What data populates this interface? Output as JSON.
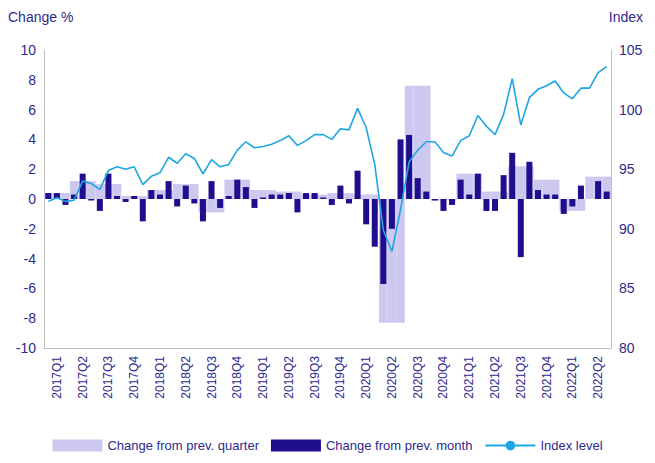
{
  "chart_data": {
    "type": "bar",
    "ylabel": "Change %",
    "y2label": "Index",
    "categories": [
      null,
      "2017Q1",
      null,
      null,
      "2017Q2",
      null,
      null,
      "2017Q3",
      null,
      null,
      "2017Q4",
      null,
      null,
      "2018Q1",
      null,
      null,
      "2018Q2",
      null,
      null,
      "2018Q3",
      null,
      null,
      "2018Q4",
      null,
      null,
      "2019Q1",
      null,
      null,
      "2019Q2",
      null,
      null,
      "2019Q3",
      null,
      null,
      "2019Q4",
      null,
      null,
      "2020Q1",
      null,
      null,
      "2020Q2",
      null,
      null,
      "2020Q3",
      null,
      null,
      "2020Q4",
      null,
      null,
      "2021Q1",
      null,
      null,
      "2021Q2",
      null,
      null,
      "2021Q3",
      null,
      null,
      "2021Q4",
      null,
      null,
      "2022Q1",
      null,
      null,
      "2022Q2",
      null
    ],
    "series": [
      {
        "name": "Change from prev. quarter",
        "type": "bar",
        "color": "#cdc8ef",
        "values": [
          0.4,
          0.4,
          0.4,
          1.2,
          1.2,
          1.2,
          1.0,
          1.0,
          1.0,
          0.2,
          0.2,
          0.2,
          0.6,
          0.6,
          0.6,
          1.0,
          1.0,
          1.0,
          -0.9,
          -0.9,
          -0.9,
          1.3,
          1.3,
          1.3,
          0.6,
          0.6,
          0.6,
          0.5,
          0.5,
          0.5,
          0.3,
          0.3,
          0.3,
          0.4,
          0.4,
          0.4,
          0.3,
          0.3,
          0.3,
          -8.3,
          -8.3,
          -8.3,
          7.6,
          7.6,
          7.6,
          -0.1,
          -0.1,
          -0.1,
          1.7,
          1.7,
          1.7,
          0.5,
          0.5,
          0.5,
          2.2,
          2.2,
          2.2,
          1.3,
          1.3,
          1.3,
          -0.8,
          -0.8,
          -0.8,
          1.5,
          1.5,
          1.5
        ]
      },
      {
        "name": "Change from prev. month",
        "type": "bar",
        "color": "#1f0f8f",
        "values": [
          0.4,
          0.4,
          -0.4,
          0.3,
          1.7,
          -0.1,
          -0.8,
          1.7,
          0.2,
          -0.2,
          0.2,
          -1.5,
          0.6,
          0.3,
          1.2,
          -0.5,
          0.9,
          -0.3,
          -1.5,
          1.2,
          -0.6,
          0.2,
          1.3,
          0.8,
          -0.6,
          0.1,
          0.3,
          0.3,
          0.4,
          -0.9,
          0.4,
          0.4,
          0.1,
          -0.4,
          0.9,
          -0.3,
          1.9,
          -1.7,
          -3.2,
          -5.7,
          -2.0,
          4.0,
          4.3,
          1.4,
          0.5,
          -0.1,
          -0.8,
          -0.4,
          1.3,
          0.3,
          1.7,
          -0.8,
          -0.8,
          1.6,
          3.1,
          -3.9,
          2.5,
          0.6,
          0.3,
          0.3,
          -1.0,
          -0.5,
          0.9,
          0.0,
          1.2,
          0.5
        ]
      },
      {
        "name": "Index level",
        "type": "line",
        "axis": "y2",
        "color": "#1ea6e0",
        "values": [
          92.3,
          92.6,
          92.3,
          92.4,
          94.0,
          93.8,
          93.3,
          94.9,
          95.2,
          95.0,
          95.2,
          93.7,
          94.4,
          94.7,
          96.0,
          95.5,
          96.3,
          95.9,
          94.6,
          95.8,
          95.2,
          95.4,
          96.6,
          97.3,
          96.8,
          96.9,
          97.1,
          97.4,
          97.8,
          97.0,
          97.4,
          97.9,
          97.9,
          97.5,
          98.4,
          98.3,
          100.1,
          98.5,
          95.4,
          89.9,
          88.1,
          91.6,
          95.6,
          96.6,
          97.3,
          97.3,
          96.4,
          96.1,
          97.4,
          97.8,
          99.5,
          98.6,
          97.9,
          99.6,
          102.6,
          98.7,
          101.0,
          101.7,
          102.0,
          102.4,
          101.4,
          100.9,
          101.8,
          101.8,
          103.1,
          103.6
        ]
      }
    ],
    "ylim": [
      -10,
      10
    ],
    "yticks": [
      -10,
      -8,
      -6,
      -4,
      -2,
      0,
      2,
      4,
      6,
      8,
      10
    ],
    "y2lim": [
      80,
      105
    ],
    "y2ticks": [
      80,
      85,
      90,
      95,
      100,
      105
    ],
    "legend": "bottom",
    "grid": false
  }
}
